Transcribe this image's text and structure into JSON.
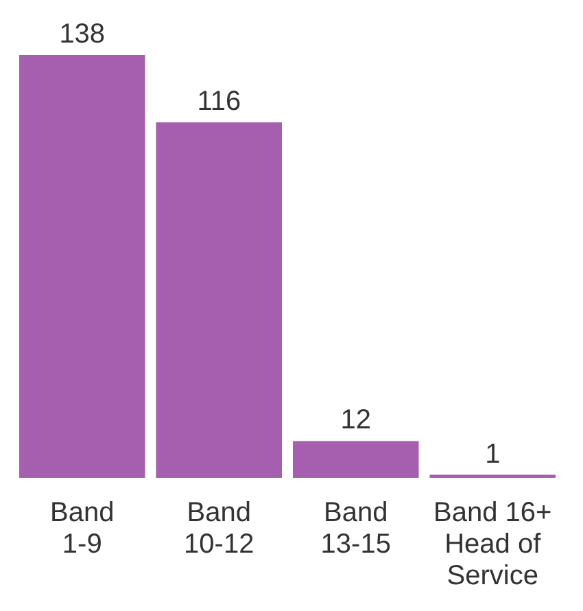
{
  "chart_data": {
    "type": "bar",
    "categories": [
      "Band\n1-9",
      "Band\n10-12",
      "Band\n13-15",
      "Band 16+\nHead of\nService"
    ],
    "values": [
      138,
      116,
      12,
      1
    ],
    "color": "#a55fae",
    "data_labels": true
  }
}
